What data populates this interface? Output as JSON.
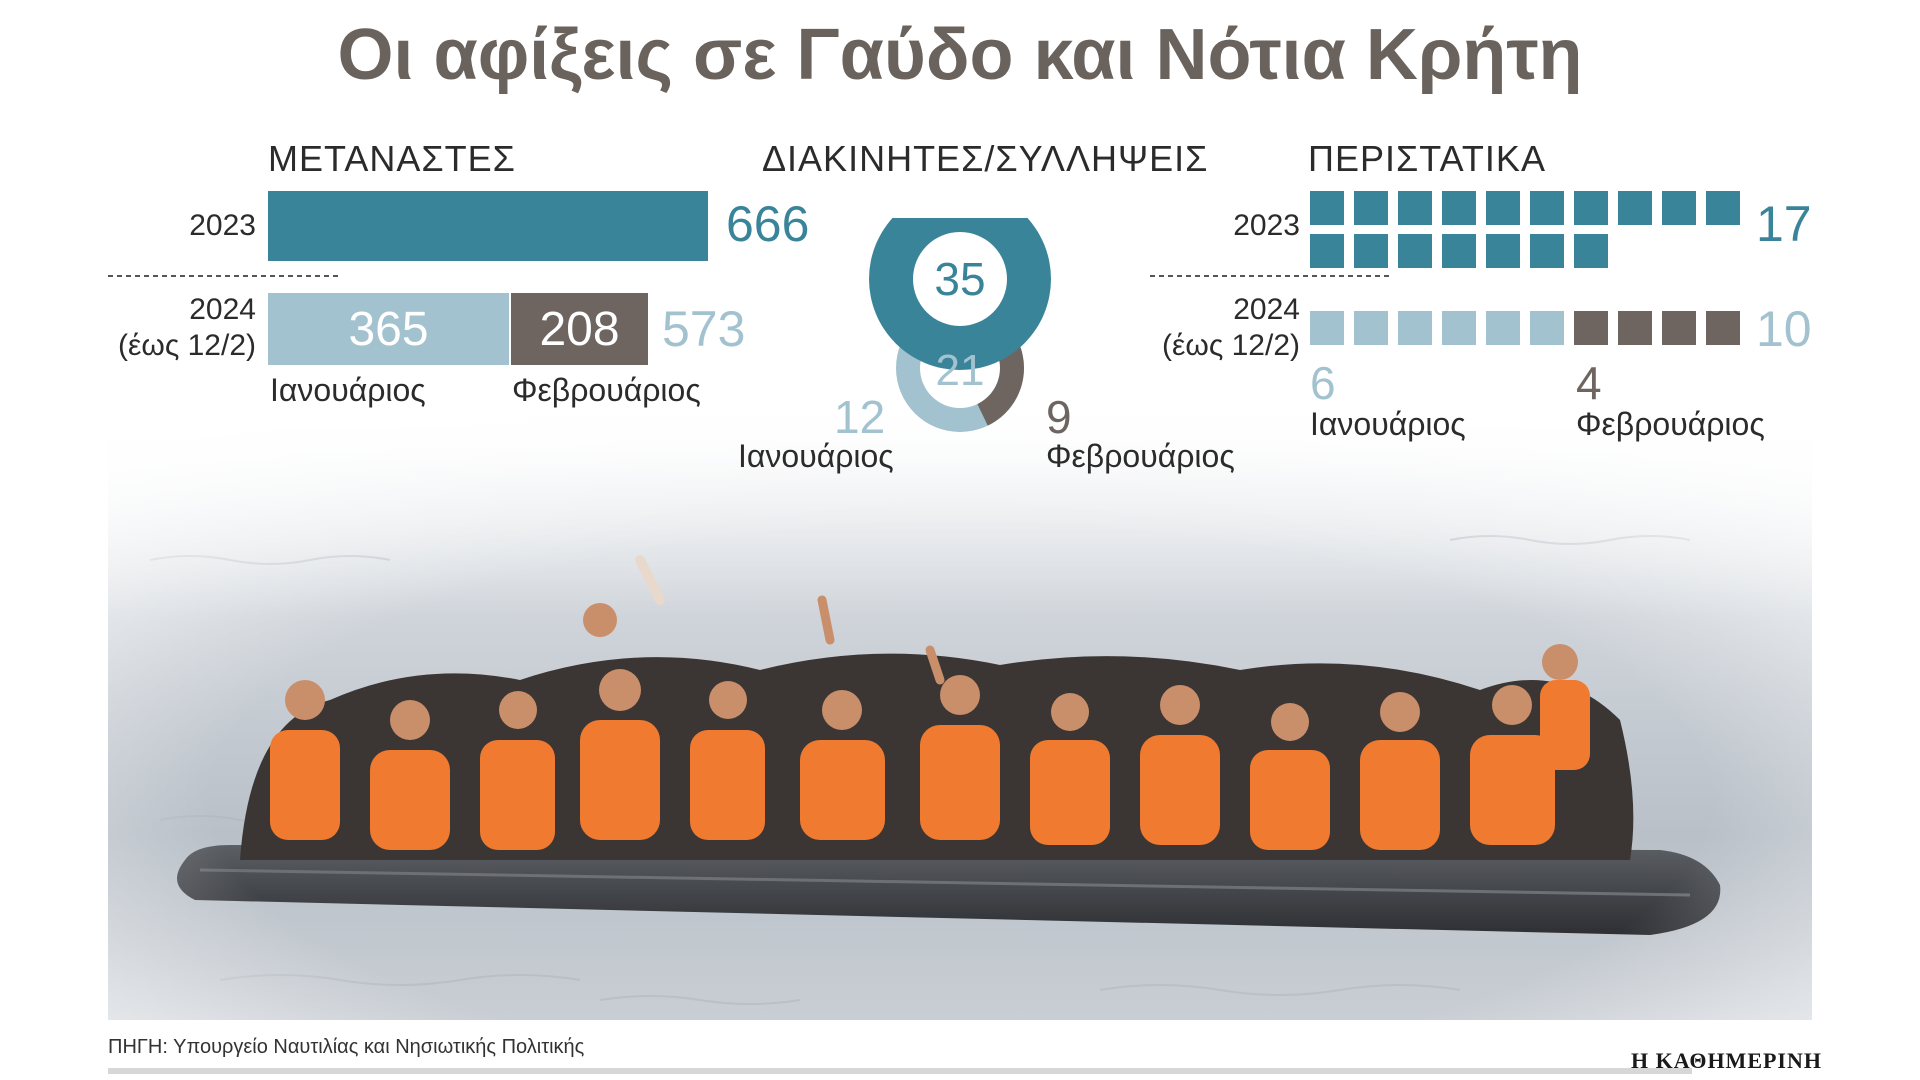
{
  "title": "Οι αφίξεις σε Γαύδο και Νότια Κρήτη",
  "colors": {
    "teal": "#3a8499",
    "light_blue": "#a3c2cf",
    "grey_brown": "#6e6560",
    "title": "#6a625c"
  },
  "migrants": {
    "heading": "ΜΕΤΑΝΑΣΤΕΣ",
    "year_2023": "2023",
    "year_2024": "2024",
    "year_2024_note": "(έως 12/2)",
    "total_2023": "666",
    "january_2024": "365",
    "february_2024": "208",
    "total_2024": "573",
    "january_label": "Ιανουάριος",
    "february_label": "Φεβρουάριος"
  },
  "smugglers": {
    "heading": "ΔΙΑΚΙΝΗΤΕΣ/ΣΥΛΛΗΨΕΙΣ",
    "total_2023": "35",
    "total_2024": "21",
    "january_2024": "12",
    "february_2024": "9",
    "january_label": "Ιανουάριος",
    "february_label": "Φεβρουάριος"
  },
  "incidents": {
    "heading": "ΠΕΡΙΣΤΑΤΙΚΑ",
    "year_2023": "2023",
    "year_2024": "2024",
    "year_2024_note": "(έως 12/2)",
    "total_2023": "17",
    "total_2024": "10",
    "january_2024": "6",
    "february_2024": "4",
    "january_label": "Ιανουάριος",
    "february_label": "Φεβρουάριος"
  },
  "chart_data": [
    {
      "type": "bar",
      "title": "ΜΕΤΑΝΑΣΤΕΣ",
      "categories": [
        "2023",
        "2024 (έως 12/2)"
      ],
      "series": [
        {
          "name": "",
          "values": [
            666,
            null
          ]
        },
        {
          "name": "Ιανουάριος",
          "values": [
            null,
            365
          ]
        },
        {
          "name": "Φεβρουάριος",
          "values": [
            null,
            208
          ]
        }
      ],
      "totals": [
        666,
        573
      ],
      "stacked": true,
      "orientation": "horizontal"
    },
    {
      "type": "pie",
      "title": "ΔΙΑΚΙΝΗΤΕΣ/ΣΥΛΛΗΨΕΙΣ",
      "total_2023": 35,
      "total_2024": 21,
      "slices_2024": [
        {
          "name": "Ιανουάριος",
          "value": 12
        },
        {
          "name": "Φεβρουάριος",
          "value": 9
        }
      ]
    },
    {
      "type": "bar",
      "title": "ΠΕΡΙΣΤΑΤΙΚΑ",
      "categories": [
        "2023",
        "2024 (έως 12/2)"
      ],
      "units_2023": 17,
      "units_2024": [
        {
          "name": "Ιανουάριος",
          "value": 6
        },
        {
          "name": "Φεβρουάριος",
          "value": 4
        }
      ],
      "totals": [
        17,
        10
      ]
    }
  ],
  "source": "ΠΗΓΗ: Υπουργείο Ναυτιλίας και Νησιωτικής Πολιτικής",
  "brand": "Η ΚΑΘΗΜΕΡΙΝΗ"
}
